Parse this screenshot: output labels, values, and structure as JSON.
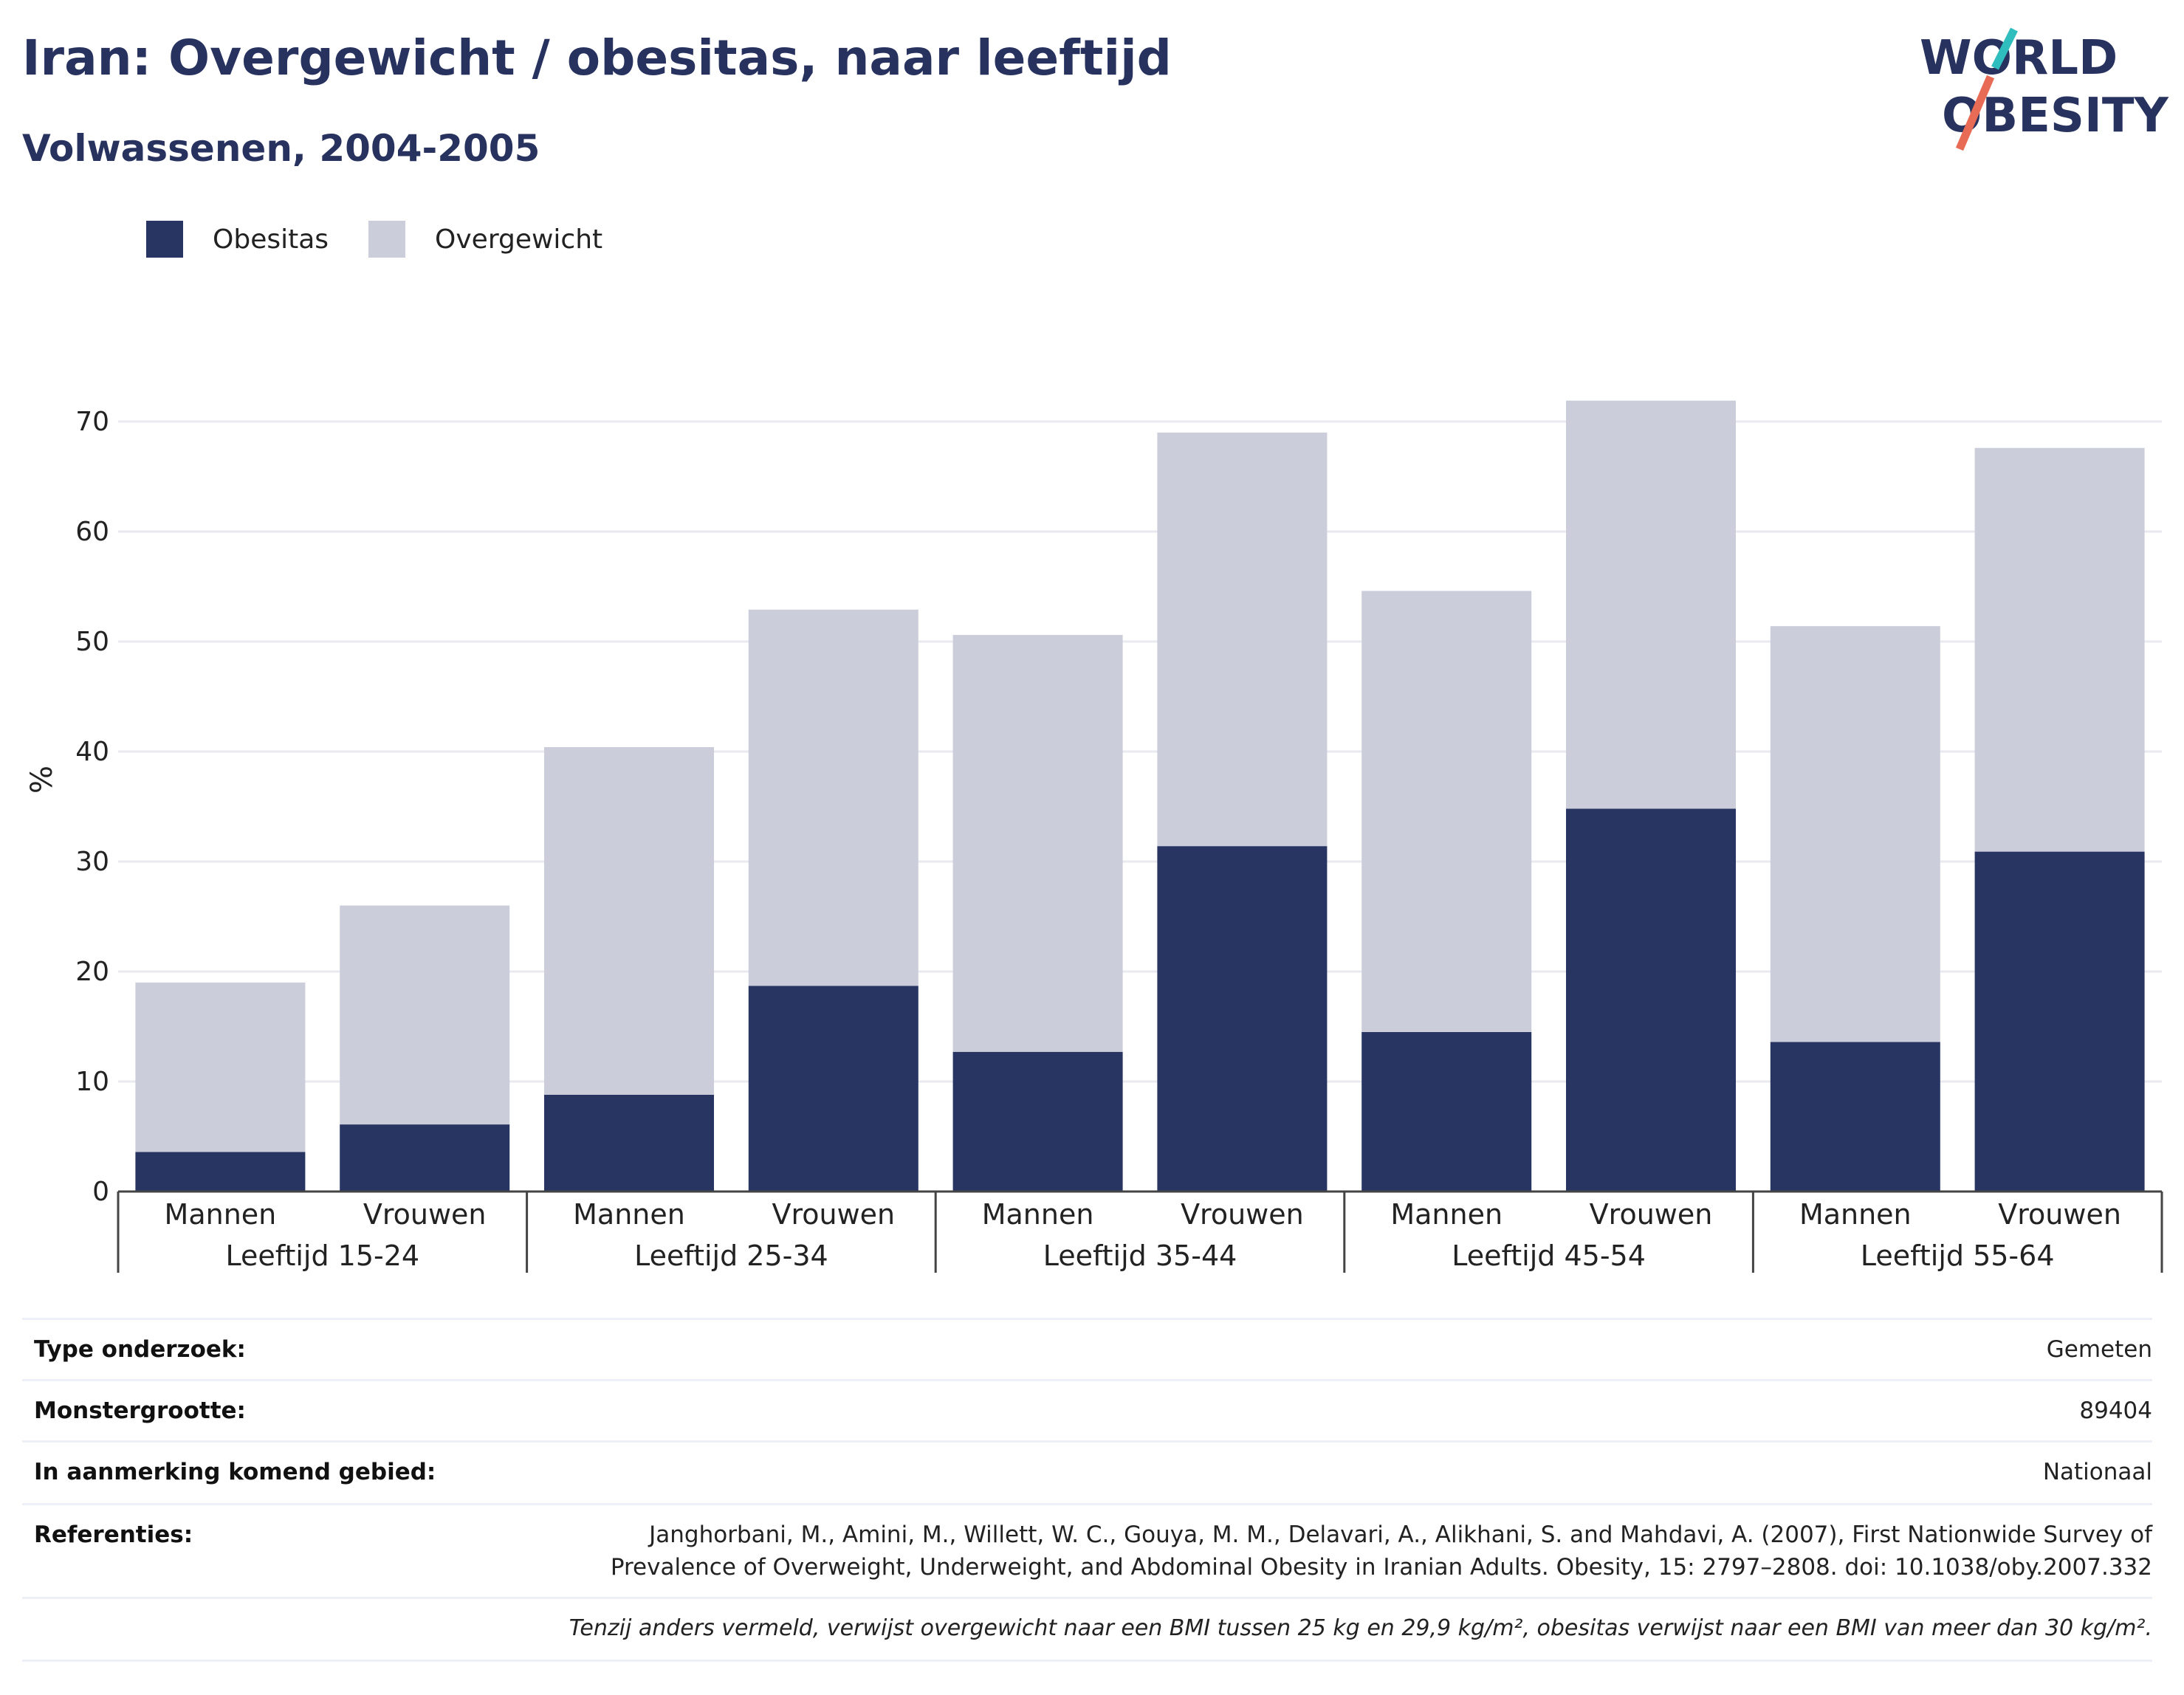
{
  "header": {
    "title": "Iran: Overgewicht / obesitas, naar leeftijd",
    "subtitle": "Volwassenen, 2004-2005"
  },
  "logo": {
    "line1": "WORLD",
    "line2": "OBESITY"
  },
  "legend": [
    {
      "label": "Obesitas",
      "color": "#283462"
    },
    {
      "label": "Overgewicht",
      "color": "#cbcdda"
    }
  ],
  "chart_data": {
    "type": "bar",
    "stacked": true,
    "ylabel": "%",
    "ylim": [
      0,
      75
    ],
    "yticks": [
      0,
      10,
      20,
      30,
      40,
      50,
      60,
      70
    ],
    "grid": true,
    "legend_position": "top-left",
    "groups": [
      "Leeftijd 15-24",
      "Leeftijd 25-34",
      "Leeftijd 35-44",
      "Leeftijd 45-54",
      "Leeftijd 55-64"
    ],
    "subcategories": [
      "Mannen",
      "Vrouwen"
    ],
    "series": [
      {
        "name": "Obesitas",
        "color": "#283462",
        "values": [
          3.6,
          6.1,
          8.8,
          18.7,
          12.7,
          31.4,
          14.5,
          34.8,
          13.6,
          30.9
        ]
      },
      {
        "name": "Overgewicht",
        "color": "#cbcdda",
        "values": [
          15.4,
          19.9,
          31.6,
          34.2,
          37.9,
          37.6,
          40.1,
          37.1,
          37.8,
          36.7
        ]
      }
    ]
  },
  "info": {
    "rows": [
      {
        "label": "Type onderzoek:",
        "value": "Gemeten"
      },
      {
        "label": "Monstergrootte:",
        "value": "89404"
      },
      {
        "label": "In aanmerking komend gebied:",
        "value": "Nationaal"
      }
    ],
    "references_label": "Referenties:",
    "references_line1": "Janghorbani, M., Amini, M., Willett, W. C., Gouya, M. M., Delavari, A., Alikhani, S. and Mahdavi, A. (2007), First Nationwide Survey of",
    "references_line2": "Prevalence of Overweight, Underweight, and Abdominal Obesity in Iranian Adults. Obesity, 15: 2797–2808. doi: 10.1038/oby.2007.332",
    "footnote": "Tenzij anders vermeld, verwijst overgewicht naar een BMI tussen 25 kg en 29,9 kg/m², obesitas verwijst naar een BMI van meer dan 30 kg/m²."
  }
}
